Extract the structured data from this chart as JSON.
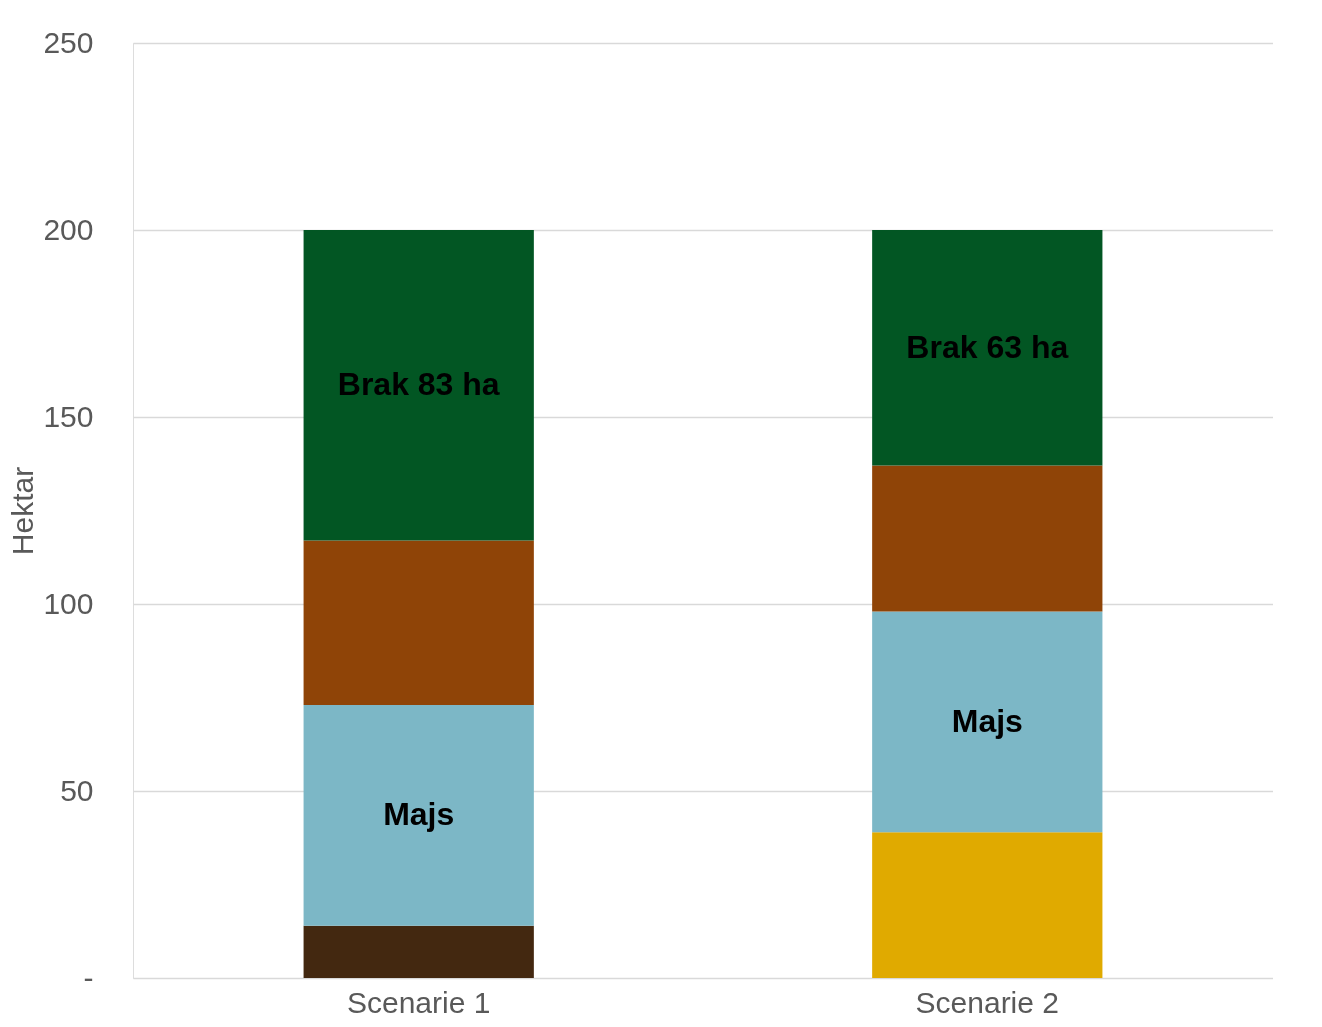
{
  "chart_data": {
    "type": "bar",
    "stacked": true,
    "ylabel": "Hektar",
    "categories": [
      "Scenarie 1",
      "Scenarie 2"
    ],
    "series": [
      {
        "color": "#432810",
        "values": [
          14,
          null
        ]
      },
      {
        "color": "#e0aa00",
        "values": [
          null,
          39
        ]
      },
      {
        "color": "#7cb7c6",
        "values": [
          59,
          59
        ],
        "value_labels": [
          "Majs",
          "Majs"
        ]
      },
      {
        "color": "#8f4407",
        "values": [
          44,
          39
        ]
      },
      {
        "color": "#025623",
        "values": [
          83,
          63
        ],
        "value_labels": [
          "Brak 83 ha",
          "Brak 63 ha"
        ]
      }
    ],
    "ylim": [
      0,
      250
    ],
    "yticks": [
      {
        "value": 0,
        "label": "-"
      },
      50,
      100,
      150,
      200,
      250
    ],
    "grid": "y",
    "legend": false
  }
}
